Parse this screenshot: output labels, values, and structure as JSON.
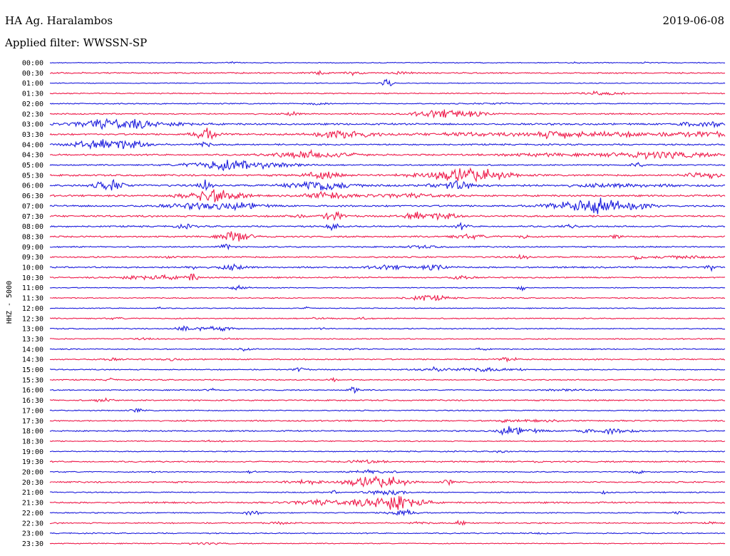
{
  "header": {
    "station": "HA Ag. Haralambos",
    "date": "2019-06-08",
    "filter": "Applied filter: WWSSN-SP"
  },
  "chart_data": {
    "type": "line",
    "title": "HA Ag. Haralambos",
    "ylabel": "HHZ - 5000",
    "colors": [
      "#1a1adc",
      "#ee1a4a"
    ],
    "rows": [
      {
        "label": "00:00",
        "amp": 0.4,
        "events": [
          [
            0.27,
            0.6,
            0.005
          ],
          [
            0.78,
            0.7,
            0.005
          ],
          [
            0.88,
            0.4,
            0.004
          ],
          [
            0.97,
            0.4,
            0.004
          ]
        ]
      },
      {
        "label": "00:30",
        "amp": 0.6,
        "events": [
          [
            0.4,
            1.2,
            0.01
          ],
          [
            0.45,
            1.6,
            0.008
          ],
          [
            0.52,
            0.8,
            0.01
          ]
        ]
      },
      {
        "label": "01:00",
        "amp": 0.4,
        "events": [
          [
            0.5,
            3.5,
            0.006
          ]
        ]
      },
      {
        "label": "01:30",
        "amp": 0.5,
        "events": [
          [
            0.82,
            1.6,
            0.02
          ]
        ]
      },
      {
        "label": "02:00",
        "amp": 0.5,
        "events": [
          [
            0.4,
            1.0,
            0.01
          ],
          [
            0.66,
            0.6,
            0.02
          ]
        ]
      },
      {
        "label": "02:30",
        "amp": 0.6,
        "events": [
          [
            0.36,
            2.0,
            0.006
          ],
          [
            0.6,
            3.0,
            0.03
          ],
          [
            0.56,
            1.2,
            0.02
          ]
        ]
      },
      {
        "label": "03:00",
        "amp": 0.8,
        "events": [
          [
            0.09,
            4.2,
            0.035
          ],
          [
            0.14,
            1.5,
            0.02
          ],
          [
            0.2,
            1.0,
            0.02
          ],
          [
            0.95,
            1.6,
            0.02
          ],
          [
            0.99,
            2.0,
            0.01
          ]
        ]
      },
      {
        "label": "03:30",
        "amp": 0.8,
        "events": [
          [
            0.23,
            5.5,
            0.012
          ],
          [
            0.44,
            3.5,
            0.03
          ],
          [
            0.62,
            1.2,
            0.05
          ],
          [
            0.75,
            3.0,
            0.03
          ],
          [
            0.85,
            1.8,
            0.05
          ],
          [
            0.97,
            2.0,
            0.03
          ]
        ]
      },
      {
        "label": "04:00",
        "amp": 0.7,
        "events": [
          [
            0.08,
            4.0,
            0.03
          ],
          [
            0.13,
            1.8,
            0.02
          ],
          [
            0.23,
            3.0,
            0.006
          ]
        ]
      },
      {
        "label": "04:30",
        "amp": 0.7,
        "events": [
          [
            0.39,
            3.0,
            0.04
          ],
          [
            0.9,
            3.0,
            0.05
          ],
          [
            0.72,
            1.0,
            0.05
          ]
        ]
      },
      {
        "label": "05:00",
        "amp": 0.6,
        "events": [
          [
            0.29,
            3.2,
            0.05
          ],
          [
            0.25,
            2.0,
            0.03
          ],
          [
            0.87,
            1.8,
            0.006
          ]
        ]
      },
      {
        "label": "05:30",
        "amp": 0.8,
        "events": [
          [
            0.4,
            3.0,
            0.02
          ],
          [
            0.59,
            3.5,
            0.04
          ],
          [
            0.64,
            4.0,
            0.03
          ],
          [
            0.97,
            3.0,
            0.02
          ]
        ]
      },
      {
        "label": "06:00",
        "amp": 0.9,
        "events": [
          [
            0.09,
            4.5,
            0.015
          ],
          [
            0.23,
            4.5,
            0.006
          ],
          [
            0.4,
            4.5,
            0.03
          ],
          [
            0.6,
            4.0,
            0.02
          ],
          [
            0.84,
            1.2,
            0.05
          ]
        ]
      },
      {
        "label": "06:30",
        "amp": 0.8,
        "events": [
          [
            0.23,
            4.5,
            0.025
          ],
          [
            0.26,
            3.0,
            0.02
          ],
          [
            0.41,
            3.5,
            0.02
          ],
          [
            0.53,
            1.5,
            0.04
          ]
        ]
      },
      {
        "label": "07:00",
        "amp": 0.8,
        "events": [
          [
            0.23,
            2.5,
            0.04
          ],
          [
            0.29,
            1.8,
            0.02
          ],
          [
            0.79,
            4.0,
            0.035
          ],
          [
            0.82,
            3.5,
            0.02
          ],
          [
            0.87,
            2.0,
            0.02
          ]
        ]
      },
      {
        "label": "07:30",
        "amp": 0.8,
        "events": [
          [
            0.36,
            1.5,
            0.01
          ],
          [
            0.42,
            4.5,
            0.01
          ],
          [
            0.54,
            3.0,
            0.01
          ],
          [
            0.58,
            2.5,
            0.02
          ]
        ]
      },
      {
        "label": "08:00",
        "amp": 0.7,
        "events": [
          [
            0.2,
            1.5,
            0.01
          ],
          [
            0.42,
            3.5,
            0.006
          ],
          [
            0.61,
            2.5,
            0.006
          ],
          [
            0.77,
            1.0,
            0.01
          ]
        ]
      },
      {
        "label": "08:30",
        "amp": 0.7,
        "events": [
          [
            0.27,
            3.0,
            0.01
          ],
          [
            0.28,
            2.0,
            0.02
          ],
          [
            0.62,
            1.5,
            0.02
          ],
          [
            0.7,
            1.8,
            0.006
          ],
          [
            0.84,
            1.8,
            0.006
          ]
        ]
      },
      {
        "label": "09:00",
        "amp": 0.6,
        "events": [
          [
            0.26,
            3.0,
            0.006
          ],
          [
            0.55,
            1.0,
            0.02
          ]
        ]
      },
      {
        "label": "09:30",
        "amp": 0.7,
        "events": [
          [
            0.17,
            1.6,
            0.005
          ],
          [
            0.7,
            1.6,
            0.006
          ],
          [
            0.87,
            2.0,
            0.006
          ],
          [
            0.93,
            1.0,
            0.03
          ]
        ]
      },
      {
        "label": "10:00",
        "amp": 0.7,
        "events": [
          [
            0.21,
            2.5,
            0.006
          ],
          [
            0.27,
            2.0,
            0.015
          ],
          [
            0.5,
            1.6,
            0.02
          ],
          [
            0.57,
            2.0,
            0.015
          ],
          [
            0.98,
            3.0,
            0.005
          ]
        ]
      },
      {
        "label": "10:30",
        "amp": 0.6,
        "events": [
          [
            0.15,
            2.0,
            0.03
          ],
          [
            0.21,
            3.5,
            0.006
          ],
          [
            0.61,
            2.0,
            0.01
          ]
        ]
      },
      {
        "label": "11:00",
        "amp": 0.4,
        "events": [
          [
            0.28,
            1.6,
            0.01
          ],
          [
            0.7,
            4.0,
            0.004
          ]
        ]
      },
      {
        "label": "11:30",
        "amp": 0.5,
        "events": [
          [
            0.56,
            2.5,
            0.02
          ]
        ]
      },
      {
        "label": "12:00",
        "amp": 0.4,
        "events": [
          [
            0.16,
            1.0,
            0.004
          ],
          [
            0.38,
            0.8,
            0.004
          ]
        ]
      },
      {
        "label": "12:30",
        "amp": 0.5,
        "events": [
          [
            0.1,
            0.6,
            0.01
          ],
          [
            0.4,
            0.8,
            0.01
          ],
          [
            0.46,
            0.8,
            0.01
          ]
        ]
      },
      {
        "label": "13:00",
        "amp": 0.5,
        "events": [
          [
            0.2,
            2.5,
            0.008
          ],
          [
            0.24,
            1.8,
            0.02
          ],
          [
            0.4,
            1.0,
            0.005
          ]
        ]
      },
      {
        "label": "13:30",
        "amp": 0.5,
        "events": [
          [
            0.14,
            0.6,
            0.01
          ],
          [
            0.26,
            0.6,
            0.01
          ]
        ]
      },
      {
        "label": "14:00",
        "amp": 0.5,
        "events": [
          [
            0.29,
            1.2,
            0.006
          ],
          [
            0.45,
            0.8,
            0.006
          ],
          [
            0.64,
            0.7,
            0.006
          ]
        ]
      },
      {
        "label": "14:30",
        "amp": 0.6,
        "events": [
          [
            0.09,
            1.0,
            0.01
          ],
          [
            0.68,
            1.8,
            0.008
          ],
          [
            0.18,
            0.8,
            0.01
          ]
        ]
      },
      {
        "label": "15:00",
        "amp": 0.5,
        "events": [
          [
            0.37,
            2.5,
            0.006
          ],
          [
            0.57,
            1.8,
            0.02
          ],
          [
            0.64,
            1.6,
            0.02
          ],
          [
            0.69,
            1.0,
            0.01
          ]
        ]
      },
      {
        "label": "15:30",
        "amp": 0.5,
        "events": [
          [
            0.09,
            1.8,
            0.004
          ],
          [
            0.42,
            1.6,
            0.004
          ]
        ]
      },
      {
        "label": "16:00",
        "amp": 0.5,
        "events": [
          [
            0.24,
            1.6,
            0.005
          ],
          [
            0.45,
            3.5,
            0.005
          ],
          [
            0.77,
            0.7,
            0.03
          ]
        ]
      },
      {
        "label": "16:30",
        "amp": 0.6,
        "events": [
          [
            0.08,
            2.0,
            0.008
          ]
        ]
      },
      {
        "label": "17:00",
        "amp": 0.5,
        "events": [
          [
            0.13,
            1.5,
            0.006
          ]
        ]
      },
      {
        "label": "17:30",
        "amp": 0.6,
        "events": [
          [
            0.67,
            1.5,
            0.005
          ],
          [
            0.72,
            0.6,
            0.03
          ]
        ]
      },
      {
        "label": "18:00",
        "amp": 0.6,
        "events": [
          [
            0.68,
            3.0,
            0.01
          ],
          [
            0.7,
            2.0,
            0.02
          ],
          [
            0.79,
            2.0,
            0.01
          ],
          [
            0.83,
            2.5,
            0.01
          ],
          [
            0.86,
            1.2,
            0.01
          ]
        ]
      },
      {
        "label": "18:30",
        "amp": 0.5,
        "events": [
          [
            0.24,
            0.6,
            0.01
          ]
        ]
      },
      {
        "label": "19:00",
        "amp": 0.5,
        "events": [
          [
            0.67,
            1.2,
            0.008
          ]
        ]
      },
      {
        "label": "19:30",
        "amp": 0.6,
        "events": [
          [
            0.47,
            1.2,
            0.02
          ],
          [
            0.72,
            0.8,
            0.005
          ]
        ]
      },
      {
        "label": "20:00",
        "amp": 0.5,
        "events": [
          [
            0.16,
            1.0,
            0.005
          ],
          [
            0.3,
            1.5,
            0.004
          ],
          [
            0.48,
            1.6,
            0.02
          ],
          [
            0.87,
            1.8,
            0.005
          ]
        ]
      },
      {
        "label": "20:30",
        "amp": 0.7,
        "events": [
          [
            0.38,
            1.8,
            0.02
          ],
          [
            0.46,
            3.0,
            0.02
          ],
          [
            0.5,
            4.5,
            0.02
          ],
          [
            0.59,
            2.5,
            0.004
          ]
        ]
      },
      {
        "label": "21:00",
        "amp": 0.5,
        "events": [
          [
            0.42,
            1.2,
            0.005
          ],
          [
            0.5,
            2.5,
            0.02
          ],
          [
            0.82,
            1.2,
            0.005
          ]
        ]
      },
      {
        "label": "21:30",
        "amp": 0.7,
        "events": [
          [
            0.4,
            2.0,
            0.03
          ],
          [
            0.49,
            4.0,
            0.03
          ],
          [
            0.52,
            4.5,
            0.015
          ],
          [
            0.55,
            2.0,
            0.01
          ]
        ]
      },
      {
        "label": "22:00",
        "amp": 0.5,
        "events": [
          [
            0.3,
            1.6,
            0.01
          ],
          [
            0.52,
            3.0,
            0.015
          ],
          [
            0.93,
            1.0,
            0.006
          ]
        ]
      },
      {
        "label": "22:30",
        "amp": 0.6,
        "events": [
          [
            0.34,
            0.8,
            0.01
          ],
          [
            0.61,
            3.0,
            0.005
          ],
          [
            0.55,
            0.8,
            0.01
          ],
          [
            0.98,
            0.8,
            0.004
          ]
        ]
      },
      {
        "label": "23:00",
        "amp": 0.5,
        "events": [
          [
            0.73,
            0.8,
            0.01
          ]
        ]
      },
      {
        "label": "23:30",
        "amp": 0.4,
        "events": [
          [
            0.23,
            0.8,
            0.02
          ]
        ]
      }
    ]
  }
}
